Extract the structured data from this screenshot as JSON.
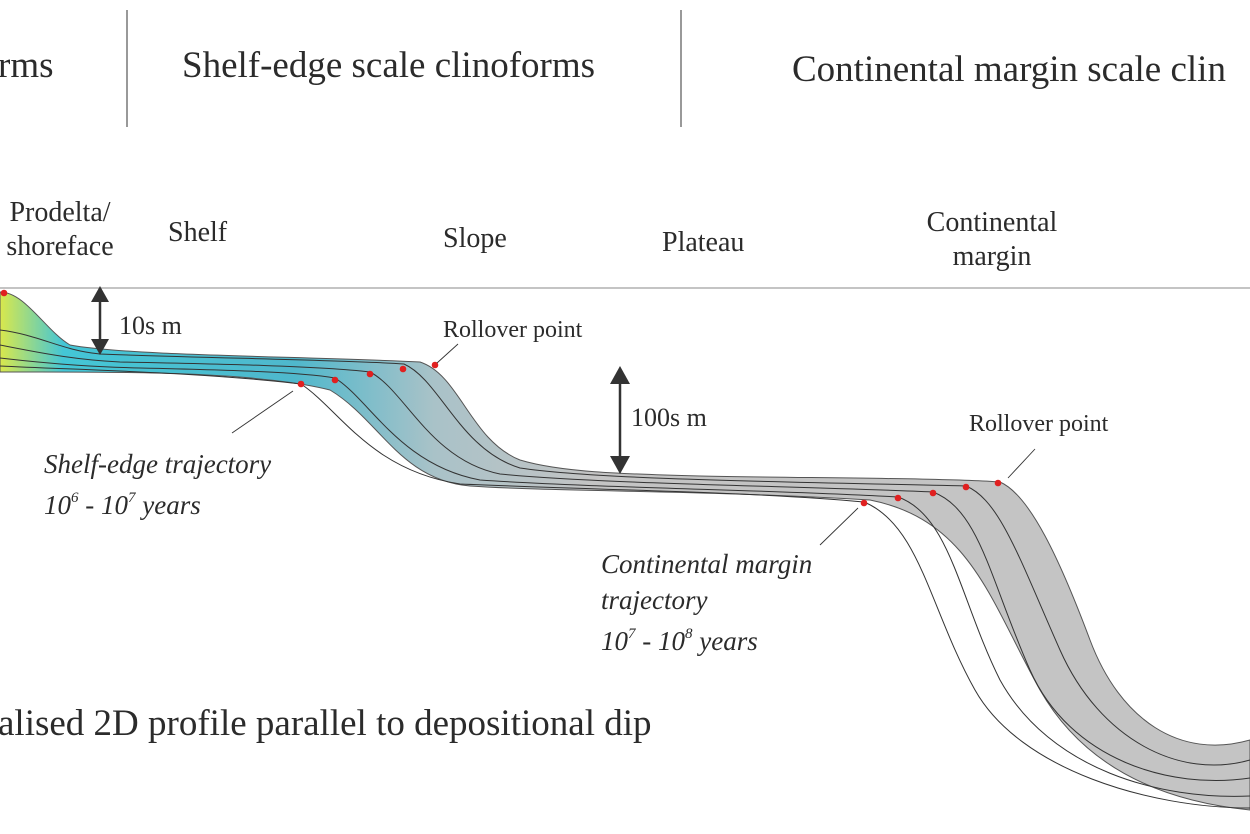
{
  "headers": {
    "left": "rms",
    "middle": "Shelf-edge scale clinoforms",
    "right": "Continental margin scale clin"
  },
  "zones": {
    "prodelta_line1": "Prodelta/",
    "prodelta_line2": "shoreface",
    "shelf": "Shelf",
    "slope": "Slope",
    "plateau": "Plateau",
    "continental_line1": "Continental",
    "continental_line2": "margin"
  },
  "labels": {
    "ten_m": "10s m",
    "hundred_m": "100s m",
    "rollover_1": "Rollover point",
    "rollover_2": "Rollover point"
  },
  "shelf_trajectory": {
    "line1": "Shelf-edge trajectory",
    "line2_a": "10",
    "line2_a_exp": "6",
    "line2_b": " - 10",
    "line2_b_exp": "7",
    "line2_c": " years"
  },
  "margin_trajectory": {
    "line1": "Continental margin",
    "line2": "trajectory",
    "line3_a": "10",
    "line3_a_exp": "7",
    "line3_b": " - 10",
    "line3_b_exp": "8",
    "line3_c": " years"
  },
  "caption": "alised 2D profile parallel to depositional dip",
  "colors": {
    "text": "#2b2b2b",
    "rollover_dot": "#e02020",
    "grey_fill": "#c4c4c4",
    "shallow_fill": "#d8e84a",
    "mid_fill": "#3fc0d8",
    "arrow": "#333333"
  }
}
